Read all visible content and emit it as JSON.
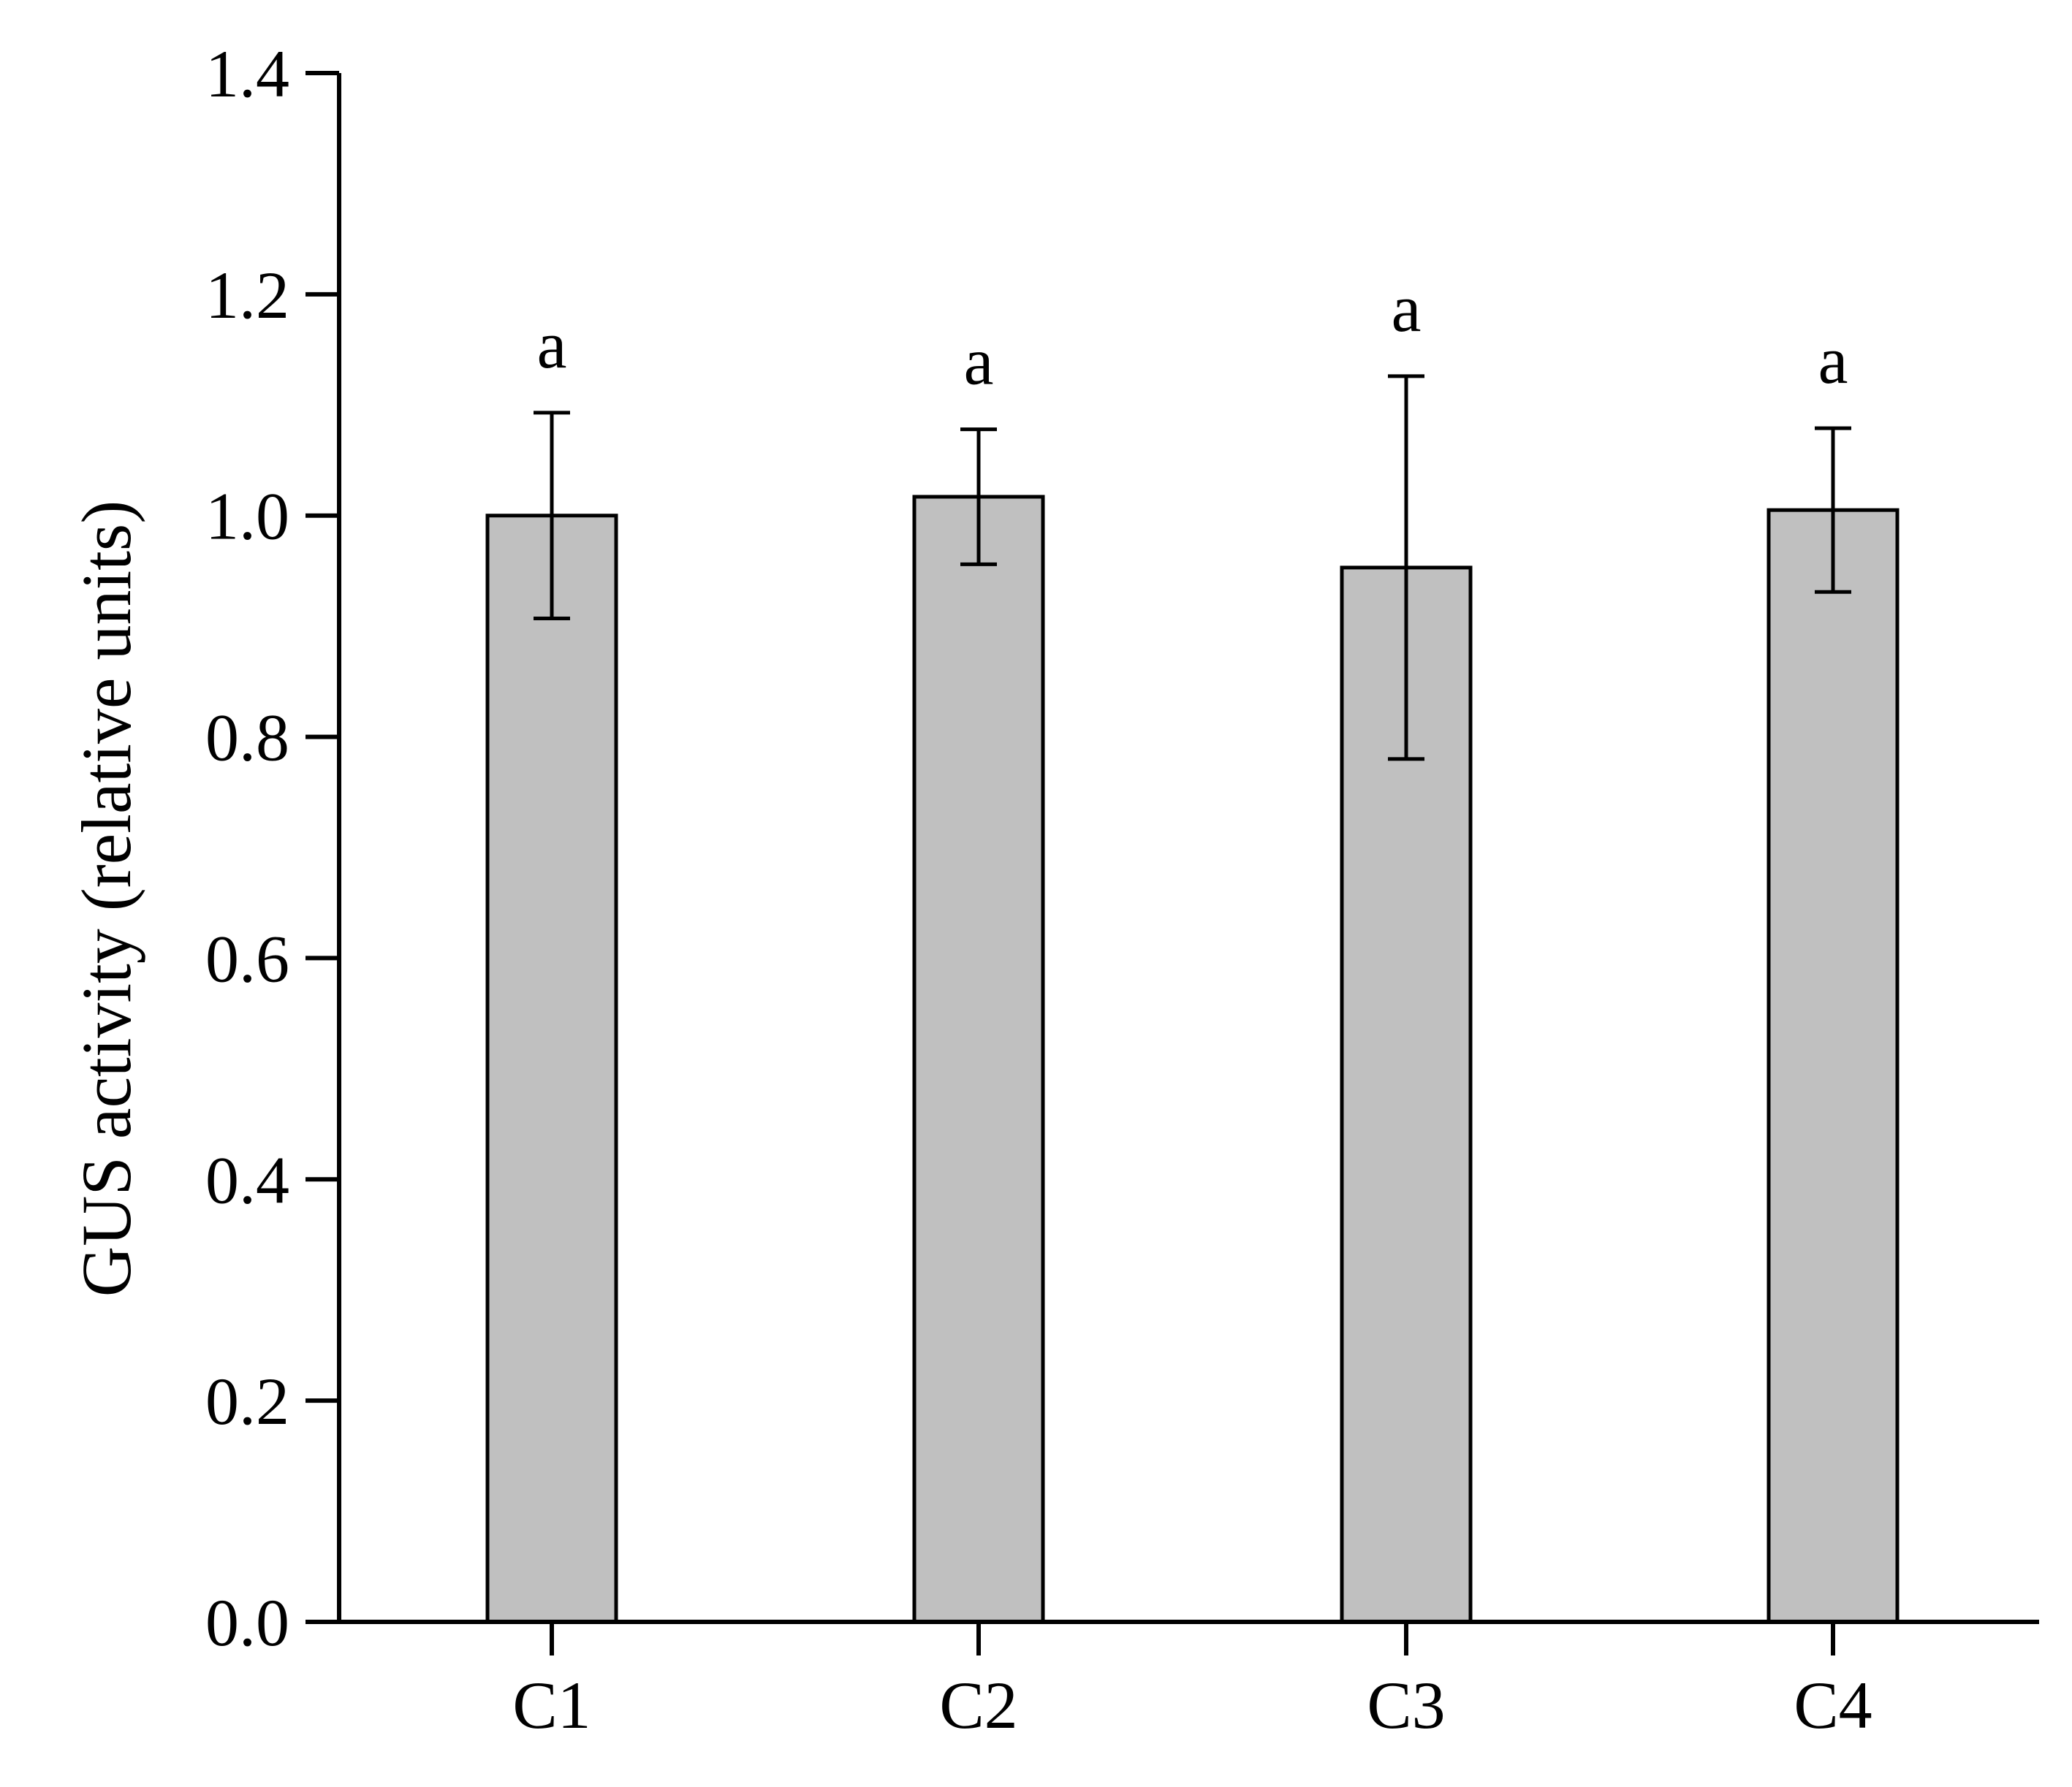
{
  "chart_data": {
    "type": "bar",
    "categories": [
      "C1",
      "C2",
      "C3",
      "C4"
    ],
    "values": [
      1.0,
      1.017,
      0.953,
      1.005
    ],
    "error": [
      0.093,
      0.061,
      0.173,
      0.074
    ],
    "significance": [
      "a",
      "a",
      "a",
      "a"
    ],
    "title": "",
    "xlabel": "",
    "ylabel": "GUS activity (relative units)",
    "ylim": [
      0,
      1.4
    ],
    "yticks": [
      0.0,
      0.2,
      0.4,
      0.6,
      0.8,
      1.0,
      1.2,
      1.4
    ],
    "ytick_labels": [
      "0.0",
      "0.2",
      "0.4",
      "0.6",
      "0.8",
      "1.0",
      "1.2",
      "1.4"
    ],
    "grid": false,
    "legend": "none",
    "colors": {
      "bar_fill": "#c0c0c0",
      "bar_stroke": "#000000",
      "axis": "#000000"
    }
  }
}
